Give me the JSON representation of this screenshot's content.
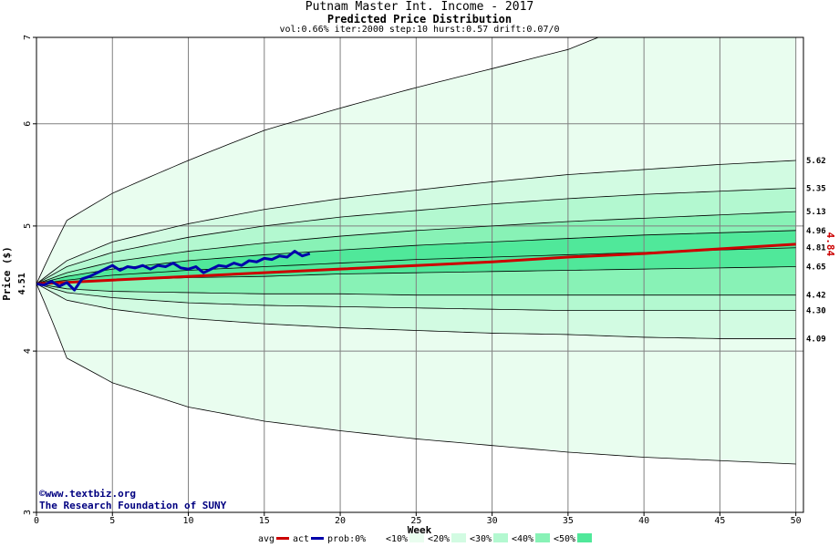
{
  "chart_data": {
    "type": "line",
    "title": "Putnam Master Int. Income - 2017",
    "subtitle": "Predicted Price Distribution",
    "params": "vol:0.66% iter:2000 step:10 hurst:0.57 drift:0.07/0",
    "xlabel": "Week",
    "ylabel": "Price ($)",
    "xlim": [
      0,
      50.5
    ],
    "ylim": [
      3,
      7
    ],
    "log_y": true,
    "grid": true,
    "x_ticks": [
      "0",
      "5",
      "10",
      "15",
      "20",
      "25",
      "30",
      "35",
      "40",
      "45",
      "50"
    ],
    "y_ticks": [
      "3",
      "4",
      "5",
      "6",
      "7"
    ],
    "start_value_label": "4.51",
    "end_value_label": "4.84",
    "watermark": [
      "©www.textbiz.org",
      "The Research Foundation of SUNY"
    ],
    "percentile_lines": [
      {
        "x": [
          0,
          2,
          5,
          10,
          15,
          20,
          25,
          30,
          35,
          40,
          45,
          50
        ],
        "values": [
          4.51,
          3.95,
          3.78,
          3.62,
          3.53,
          3.47,
          3.42,
          3.38,
          3.34,
          3.31,
          3.29,
          3.27
        ]
      },
      {
        "x": [
          0,
          2,
          5,
          10,
          15,
          20,
          25,
          30,
          35,
          40,
          45,
          50
        ],
        "values": [
          4.51,
          4.38,
          4.31,
          4.24,
          4.2,
          4.17,
          4.15,
          4.13,
          4.12,
          4.1,
          4.09,
          4.09
        ],
        "label": "4.09"
      },
      {
        "x": [
          0,
          2,
          5,
          10,
          15,
          20,
          25,
          30,
          35,
          40,
          45,
          50
        ],
        "values": [
          4.51,
          4.44,
          4.4,
          4.36,
          4.34,
          4.33,
          4.32,
          4.31,
          4.3,
          4.3,
          4.3,
          4.3
        ],
        "label": "4.30"
      },
      {
        "x": [
          0,
          2,
          5,
          10,
          15,
          20,
          25,
          30,
          35,
          40,
          45,
          50
        ],
        "values": [
          4.51,
          4.47,
          4.45,
          4.44,
          4.43,
          4.43,
          4.42,
          4.42,
          4.42,
          4.42,
          4.42,
          4.42
        ],
        "label": "4.42"
      },
      {
        "x": [
          0,
          2,
          5,
          10,
          15,
          20,
          25,
          30,
          35,
          40,
          45,
          50
        ],
        "values": [
          4.51,
          4.52,
          4.54,
          4.56,
          4.57,
          4.59,
          4.6,
          4.61,
          4.62,
          4.63,
          4.64,
          4.65
        ],
        "label": "4.65"
      },
      {
        "x": [
          0,
          2,
          5,
          10,
          15,
          20,
          25,
          30,
          35,
          40,
          45,
          50
        ],
        "values": [
          4.51,
          4.54,
          4.58,
          4.62,
          4.65,
          4.68,
          4.71,
          4.73,
          4.75,
          4.77,
          4.79,
          4.81
        ],
        "label": "4.81"
      },
      {
        "x": [
          0,
          2,
          5,
          10,
          15,
          20,
          25,
          30,
          35,
          40,
          45,
          50
        ],
        "values": [
          4.51,
          4.57,
          4.63,
          4.7,
          4.75,
          4.79,
          4.83,
          4.86,
          4.89,
          4.92,
          4.94,
          4.96
        ],
        "label": "4.96"
      },
      {
        "x": [
          0,
          2,
          5,
          10,
          15,
          20,
          25,
          30,
          35,
          40,
          45,
          50
        ],
        "values": [
          4.51,
          4.6,
          4.69,
          4.78,
          4.85,
          4.91,
          4.96,
          5.0,
          5.04,
          5.07,
          5.1,
          5.13
        ],
        "label": "5.13"
      },
      {
        "x": [
          0,
          2,
          5,
          10,
          15,
          20,
          25,
          30,
          35,
          40,
          45,
          50
        ],
        "values": [
          4.51,
          4.65,
          4.77,
          4.9,
          5.0,
          5.08,
          5.14,
          5.2,
          5.25,
          5.29,
          5.32,
          5.35
        ],
        "label": "5.35"
      },
      {
        "x": [
          0,
          2,
          5,
          10,
          15,
          20,
          25,
          30,
          35,
          40,
          45,
          50
        ],
        "values": [
          4.51,
          4.7,
          4.86,
          5.02,
          5.15,
          5.25,
          5.33,
          5.41,
          5.48,
          5.53,
          5.58,
          5.62
        ],
        "label": "5.62"
      },
      {
        "x": [
          0,
          2,
          5,
          10,
          15,
          20,
          25,
          30,
          35,
          37,
          40,
          50
        ],
        "values": [
          4.51,
          5.05,
          5.3,
          5.62,
          5.93,
          6.17,
          6.4,
          6.62,
          6.85,
          7.0,
          7.0,
          7.0
        ]
      }
    ],
    "series": [
      {
        "name": "avg",
        "color": "#cc0000",
        "x": [
          0,
          5,
          10,
          15,
          20,
          25,
          30,
          35,
          40,
          45,
          50
        ],
        "values": [
          4.51,
          4.54,
          4.57,
          4.6,
          4.63,
          4.66,
          4.69,
          4.73,
          4.76,
          4.8,
          4.84
        ]
      },
      {
        "name": "act",
        "color": "#0000aa",
        "x": [
          0,
          0.5,
          1,
          1.5,
          2,
          2.5,
          3,
          3.5,
          4,
          4.5,
          5,
          5.5,
          6,
          6.5,
          7,
          7.5,
          8,
          8.5,
          9,
          9.5,
          10,
          10.5,
          11,
          11.5,
          12,
          12.5,
          13,
          13.5,
          14,
          14.5,
          15,
          15.5,
          16,
          16.5,
          17,
          17.5,
          18
        ],
        "values": [
          4.51,
          4.5,
          4.53,
          4.49,
          4.52,
          4.46,
          4.55,
          4.57,
          4.6,
          4.63,
          4.66,
          4.62,
          4.65,
          4.64,
          4.66,
          4.63,
          4.66,
          4.65,
          4.68,
          4.64,
          4.63,
          4.65,
          4.6,
          4.63,
          4.66,
          4.65,
          4.68,
          4.66,
          4.7,
          4.69,
          4.72,
          4.71,
          4.74,
          4.73,
          4.78,
          4.74,
          4.76
        ]
      }
    ],
    "legend": {
      "placement": "bottom",
      "items": [
        {
          "label": "avg",
          "swatch": "#cc0000",
          "kind": "line"
        },
        {
          "label": "act",
          "swatch": "#0000aa",
          "kind": "line"
        },
        {
          "label": "prob:0%",
          "swatch": "#ffffff",
          "kind": "box"
        },
        {
          "label": "<10%",
          "swatch": "#e9fdef",
          "kind": "box"
        },
        {
          "label": "<20%",
          "swatch": "#d2fbe2",
          "kind": "box"
        },
        {
          "label": "<30%",
          "swatch": "#b3f8d0",
          "kind": "box"
        },
        {
          "label": "<40%",
          "swatch": "#88f2b6",
          "kind": "box"
        },
        {
          "label": "<50%",
          "swatch": "#50e89a",
          "kind": "box"
        }
      ]
    },
    "band_colors": [
      "#e9fdef",
      "#d2fbe2",
      "#b3f8d0",
      "#88f2b6",
      "#50e89a"
    ]
  }
}
